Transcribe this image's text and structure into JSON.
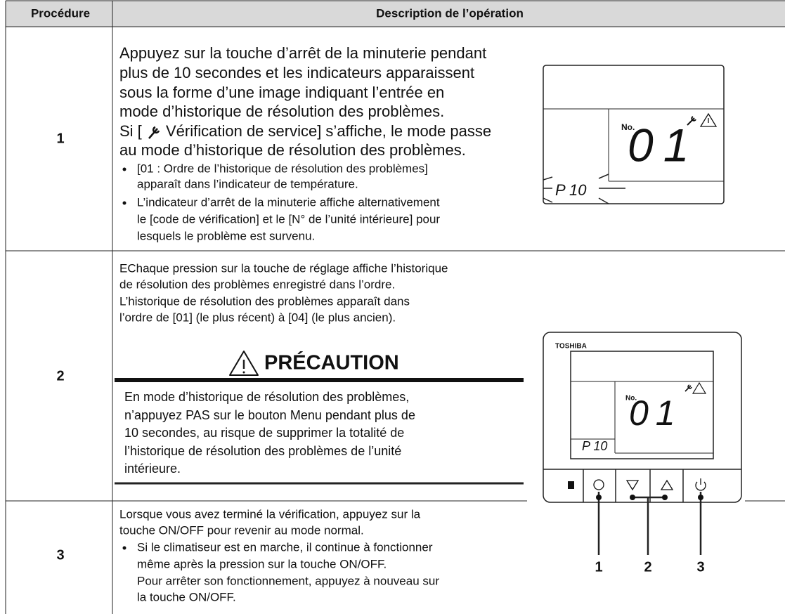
{
  "table": {
    "headers": [
      "Procédure",
      "Description de l’opération"
    ],
    "rows": [
      {
        "step": "1",
        "lines": [
          "Appuyez sur la touche d’arrêt de la minuterie pendant",
          "plus de 10 secondes et les indicateurs apparaissent",
          "sous la forme d’une image indiquant l’entrée en",
          "mode d’historique de résolution des problèmes.",
          "Si [",
          "Vérification de service] s’affiche, le mode passe",
          "au mode d’historique de résolution des problèmes."
        ],
        "bullets": [
          [
            "[01 : Ordre de l’historique de résolution des problèmes]",
            "apparaît dans l’indicateur de température."
          ],
          [
            "L’indicateur d’arrêt de la minuterie affiche alternativement",
            "le [code de vérification] et le [N° de l’unité intérieure] pour",
            "lesquels le problème est survenu."
          ]
        ]
      },
      {
        "step": "2",
        "lines": [
          "EChaque pression sur la touche de réglage affiche l’historique",
          "de résolution des problèmes enregistré dans l’ordre.",
          "L’historique de résolution des problèmes apparaît dans",
          "l’ordre de [01] (le plus récent) à [04] (le plus ancien)."
        ],
        "caution": {
          "title": "PRÉCAUTION",
          "lines": [
            "En mode d’historique de résolution des problèmes,",
            "n’appuyez PAS sur le bouton Menu pendant plus de",
            "10 secondes, au risque de supprimer la totalité de",
            "l’historique de résolution des problèmes de l’unité",
            "intérieure."
          ]
        }
      },
      {
        "step": "3",
        "lines": [
          "Lorsque vous avez terminé la vérification, appuyez sur la",
          "touche ON/OFF pour revenir au mode normal."
        ],
        "bullets": [
          [
            "Si le climatiseur est en marche, il continue à fonctionner",
            "même après la pression sur la touche ON/OFF.",
            "Pour arrêter son fonctionnement, appuyez à nouveau sur",
            "la touche ON/OFF."
          ]
        ]
      }
    ]
  },
  "display": {
    "no": "No.",
    "number": "01",
    "code": "P 10"
  },
  "controller": {
    "brand": "TOSHIBA",
    "no": "No.",
    "number": "01",
    "code": "P 10",
    "callouts": [
      "1",
      "2",
      "3"
    ]
  }
}
